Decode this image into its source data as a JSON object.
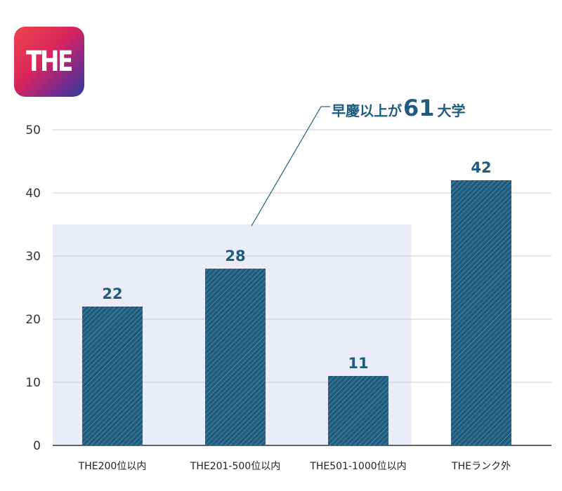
{
  "logo": {
    "text": "THE"
  },
  "chart_data": {
    "type": "bar",
    "categories": [
      "THE200位以内",
      "THE201-500位以内",
      "THE501-1000位以内",
      "THEランク外"
    ],
    "values": [
      22,
      28,
      11,
      42
    ],
    "value_labels": [
      "22",
      "28",
      "11",
      "42"
    ],
    "ylim": [
      0,
      50
    ],
    "yticks": [
      0,
      10,
      20,
      30,
      40,
      50
    ],
    "grid": true,
    "annotation": {
      "text_before": "早慶以上が",
      "number": "61",
      "text_after": "大学",
      "covers_categories": [
        0,
        1,
        2
      ]
    },
    "colors": {
      "bar": "#1f5c7e",
      "bar_hatch": "#6f9bb3",
      "highlight_bg": "#eaedf7",
      "grid": "#cccccc",
      "accent": "#1f5c7e"
    }
  }
}
